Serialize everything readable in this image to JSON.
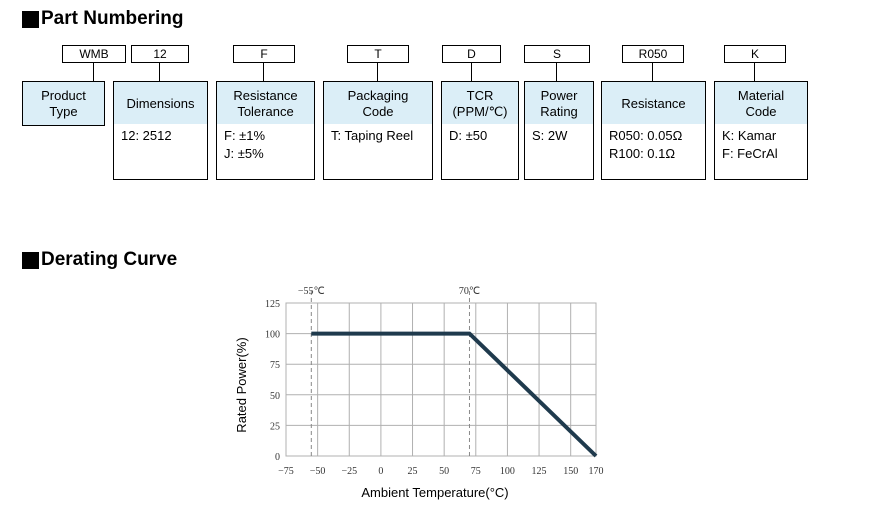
{
  "sections": {
    "part_numbering_title": "Part Numbering",
    "derating_title": "Derating Curve"
  },
  "part_numbering": [
    {
      "code": "WMB",
      "label": "Product\nType",
      "values": []
    },
    {
      "code": "12",
      "label": "Dimensions",
      "values": [
        "12: 2512"
      ]
    },
    {
      "code": "F",
      "label": "Resistance\nTolerance",
      "values": [
        "F: ±1%",
        "J: ±5%"
      ]
    },
    {
      "code": "T",
      "label": "Packaging\nCode",
      "values": [
        "T: Taping Reel"
      ]
    },
    {
      "code": "D",
      "label": "TCR\n(PPM/℃)",
      "values": [
        "D: ±50"
      ]
    },
    {
      "code": "S",
      "label": "Power\nRating",
      "values": [
        "S: 2W"
      ]
    },
    {
      "code": "R050",
      "label": "Resistance",
      "values": [
        "R050: 0.05Ω",
        "R100: 0.1Ω"
      ]
    },
    {
      "code": "K",
      "label": "Material\nCode",
      "values": [
        "K: Kamar",
        "F: FeCrAl"
      ]
    }
  ],
  "colors": {
    "header_fill": "#dbeef7",
    "curve": "#1f3a4d",
    "grid": "#b0b0b0"
  },
  "chart_data": {
    "type": "line",
    "xlabel": "Ambient Temperature(°C)",
    "ylabel": "Rated Power(%)",
    "x_ticks": [
      "−75",
      "−50",
      "−25",
      "0",
      "25",
      "50",
      "75",
      "100",
      "125",
      "150",
      "170"
    ],
    "y_ticks": [
      "0",
      "25",
      "50",
      "75",
      "100",
      "125"
    ],
    "xlim": [
      -75,
      170
    ],
    "ylim": [
      0,
      125
    ],
    "grid": true,
    "annotations": [
      "−55℃",
      "70℃"
    ],
    "series": [
      {
        "x": [
          -55,
          70,
          170
        ],
        "y": [
          100,
          100,
          0
        ]
      }
    ]
  }
}
